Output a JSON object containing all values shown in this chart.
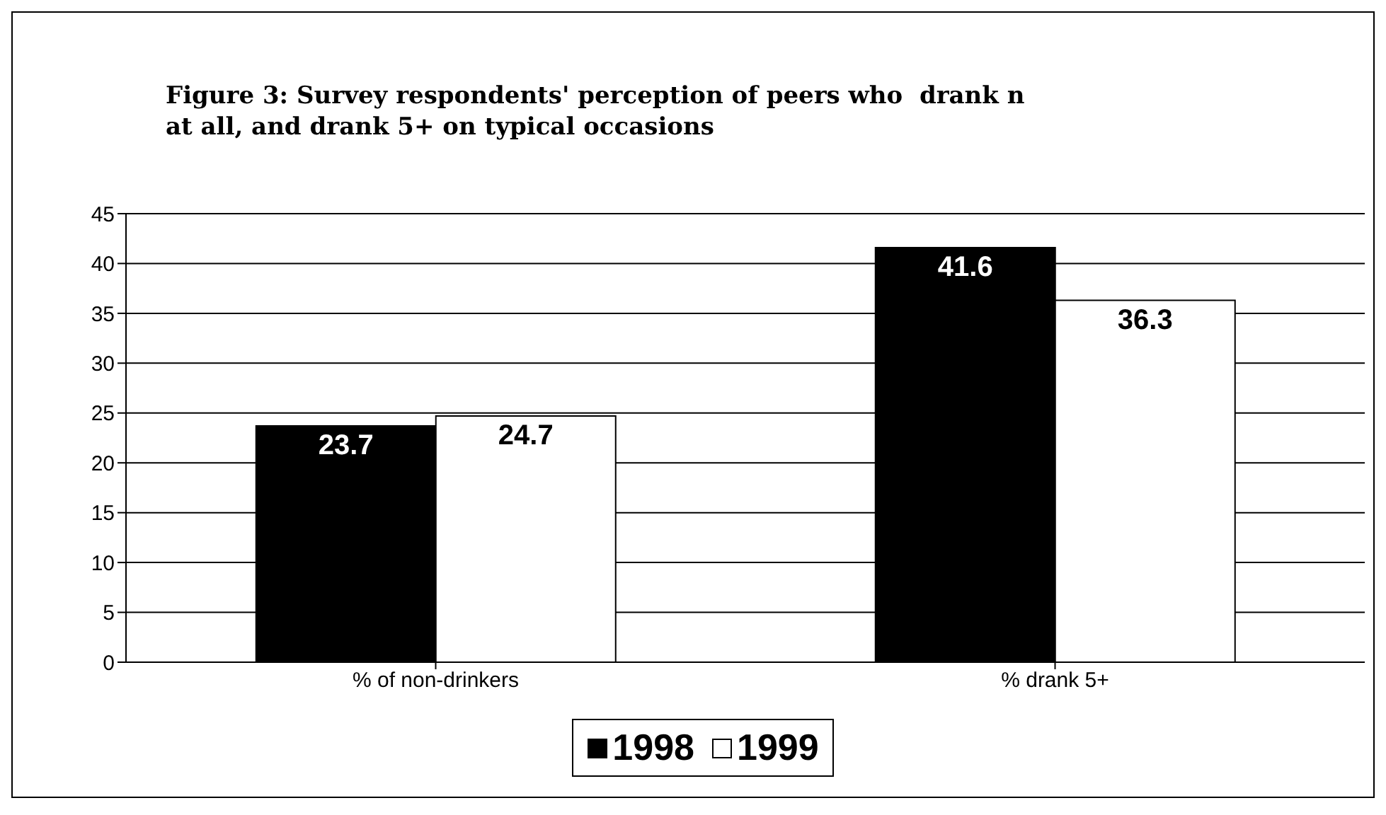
{
  "chart_data": {
    "type": "bar",
    "title": "Figure 3: Survey respondents' perception of peers who  drank n\nat all, and drank 5+ on typical occasions",
    "categories": [
      "% of non-drinkers",
      "% drank 5+"
    ],
    "series": [
      {
        "name": "1998",
        "color": "#000000",
        "values": [
          23.7,
          41.6
        ]
      },
      {
        "name": "1999",
        "color": "#ffffff",
        "values": [
          24.7,
          36.3
        ]
      }
    ],
    "ylim": [
      0,
      45
    ],
    "yticks": [
      0,
      5,
      10,
      15,
      20,
      25,
      30,
      35,
      40,
      45
    ],
    "grid": "y",
    "legend": "bottom",
    "data_labels": true
  }
}
